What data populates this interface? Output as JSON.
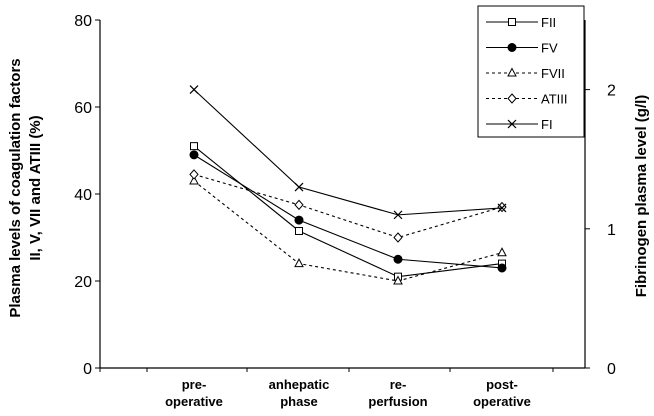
{
  "chart_data": {
    "type": "line",
    "categories": [
      [
        "pre-",
        "operative"
      ],
      [
        "anhepatic",
        "phase"
      ],
      [
        "re-",
        "perfusion"
      ],
      [
        "post-",
        "operative"
      ]
    ],
    "ylabel_left": [
      "Plasma levels of coagulation factors",
      "II, V, VII and ATIII (%)"
    ],
    "ylabel_right": "Fibrinogen plasma level (g/l)",
    "ylim_left": [
      0,
      80
    ],
    "yticks_left": [
      0,
      20,
      40,
      60,
      80
    ],
    "ylim_right": [
      0,
      2.5
    ],
    "yticks_right": [
      0,
      1,
      2
    ],
    "grid": false,
    "legend_position": "top-right",
    "series": [
      {
        "name": "FII",
        "axis": "left",
        "values": [
          51,
          31.5,
          21,
          24
        ],
        "marker": "square",
        "dash": "solid"
      },
      {
        "name": "FV",
        "axis": "left",
        "values": [
          49,
          34,
          25,
          23
        ],
        "marker": "circle",
        "dash": "solid"
      },
      {
        "name": "FVII",
        "axis": "left",
        "values": [
          43,
          24,
          20,
          26.5
        ],
        "marker": "triangle",
        "dash": "dotted"
      },
      {
        "name": "ATIII",
        "axis": "left",
        "values": [
          44.5,
          37.5,
          30,
          37
        ],
        "marker": "diamond",
        "dash": "dotted"
      },
      {
        "name": "FI",
        "axis": "right",
        "values": [
          2.0,
          1.3,
          1.1,
          1.15
        ],
        "marker": "x",
        "dash": "solid"
      }
    ]
  }
}
